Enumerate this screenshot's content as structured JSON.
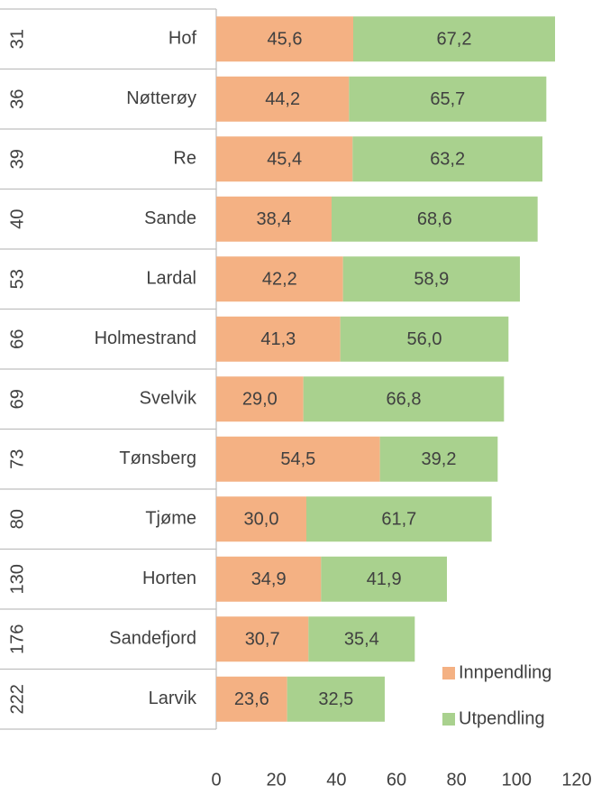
{
  "chart_data": {
    "type": "stacked_bar_horizontal",
    "categories": [
      "Hof",
      "Nøtterøy",
      "Re",
      "Sande",
      "Lardal",
      "Holmestrand",
      "Svelvik",
      "Tønsberg",
      "Tjøme",
      "Horten",
      "Sandefjord",
      "Larvik"
    ],
    "category_groups": [
      "31",
      "36",
      "39",
      "40",
      "53",
      "66",
      "69",
      "73",
      "80",
      "130",
      "176",
      "222"
    ],
    "series": [
      {
        "name": "Innpendling",
        "color": "#f4b183",
        "values": [
          45.6,
          44.2,
          45.4,
          38.4,
          42.2,
          41.3,
          29.0,
          54.5,
          30.0,
          34.9,
          30.7,
          23.6
        ],
        "value_labels": [
          "45,6",
          "44,2",
          "45,4",
          "38,4",
          "42,2",
          "41,3",
          "29,0",
          "54,5",
          "30,0",
          "34,9",
          "30,7",
          "23,6"
        ]
      },
      {
        "name": "Utpendling",
        "color": "#a9d18e",
        "values": [
          67.2,
          65.7,
          63.2,
          68.6,
          58.9,
          56.0,
          66.8,
          39.2,
          61.7,
          41.9,
          35.4,
          32.5
        ],
        "value_labels": [
          "67,2",
          "65,7",
          "63,2",
          "68,6",
          "58,9",
          "56,0",
          "66,8",
          "39,2",
          "61,7",
          "41,9",
          "35,4",
          "32,5"
        ]
      }
    ],
    "xlim": [
      0,
      120
    ],
    "xticks": [
      0,
      20,
      40,
      60,
      80,
      100,
      120
    ],
    "legend": "lower right"
  }
}
